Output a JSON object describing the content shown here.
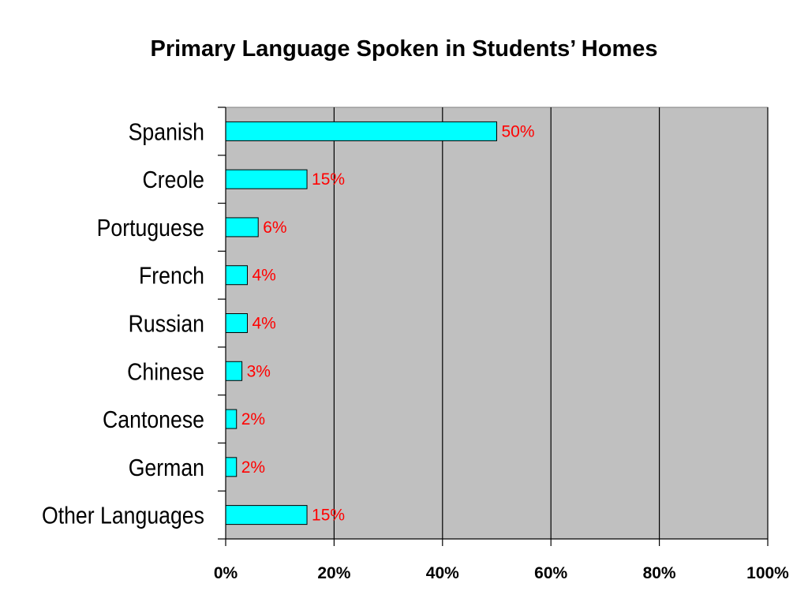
{
  "chart_data": {
    "type": "bar",
    "orientation": "horizontal",
    "title": "Primary Language Spoken in Students’ Homes",
    "categories": [
      "Spanish",
      "Creole",
      "Portuguese",
      "French",
      "Russian",
      "Chinese",
      "Cantonese",
      "German",
      "Other Languages"
    ],
    "values": [
      50,
      15,
      6,
      4,
      4,
      3,
      2,
      2,
      15
    ],
    "data_labels": [
      "50%",
      "15%",
      "6%",
      "4%",
      "4%",
      "3%",
      "2%",
      "2%",
      "15%"
    ],
    "xlim": [
      0,
      100
    ],
    "x_ticks": [
      0,
      20,
      40,
      60,
      80,
      100
    ],
    "x_tick_labels": [
      "0%",
      "20%",
      "40%",
      "60%",
      "80%",
      "100%"
    ],
    "grid": true,
    "legend": "none",
    "colors": {
      "bar": "#00ffff",
      "bar_outline": "#000000",
      "plot_background": "#c0c0c0",
      "data_label": "#ff0000",
      "gridline": "#000000"
    }
  }
}
